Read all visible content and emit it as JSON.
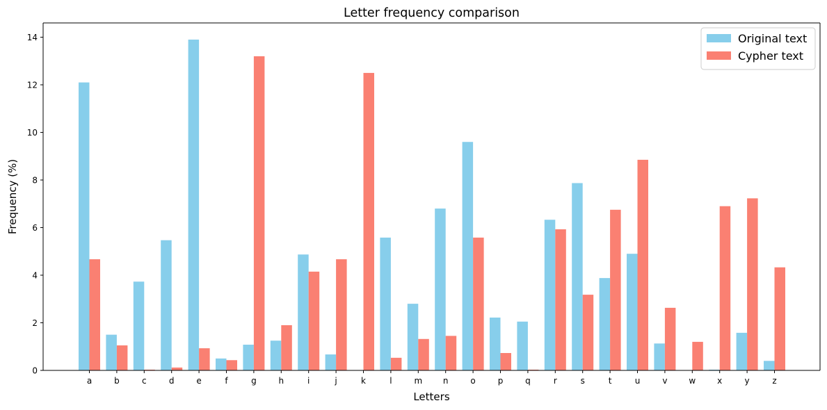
{
  "chart_data": {
    "type": "bar",
    "title": "Letter frequency comparison",
    "xlabel": "Letters",
    "ylabel": "Frequency (%)",
    "ylim": [
      0,
      14.6
    ],
    "yticks": [
      0,
      2,
      4,
      6,
      8,
      10,
      12,
      14
    ],
    "grid": false,
    "legend_position": "top-right",
    "categories": [
      "a",
      "b",
      "c",
      "d",
      "e",
      "f",
      "g",
      "h",
      "i",
      "j",
      "k",
      "l",
      "m",
      "n",
      "o",
      "p",
      "q",
      "r",
      "s",
      "t",
      "u",
      "v",
      "w",
      "x",
      "y",
      "z"
    ],
    "series": [
      {
        "name": "Original text",
        "color": "#87ceeb",
        "values": [
          12.1,
          1.5,
          3.73,
          5.47,
          13.9,
          0.5,
          1.08,
          1.25,
          4.87,
          0.67,
          0,
          5.58,
          2.8,
          6.8,
          9.6,
          2.22,
          2.05,
          6.33,
          7.87,
          3.88,
          4.9,
          1.13,
          0,
          0.03,
          1.58,
          0.4
        ]
      },
      {
        "name": "Cypher text",
        "color": "#fa8072",
        "values": [
          4.67,
          1.05,
          0.03,
          0.12,
          0.93,
          0.43,
          13.2,
          1.9,
          4.15,
          4.67,
          12.5,
          0.53,
          1.32,
          1.45,
          5.58,
          0.73,
          0.03,
          5.93,
          3.18,
          6.75,
          8.85,
          2.63,
          1.2,
          6.9,
          7.23,
          4.33
        ]
      }
    ]
  }
}
